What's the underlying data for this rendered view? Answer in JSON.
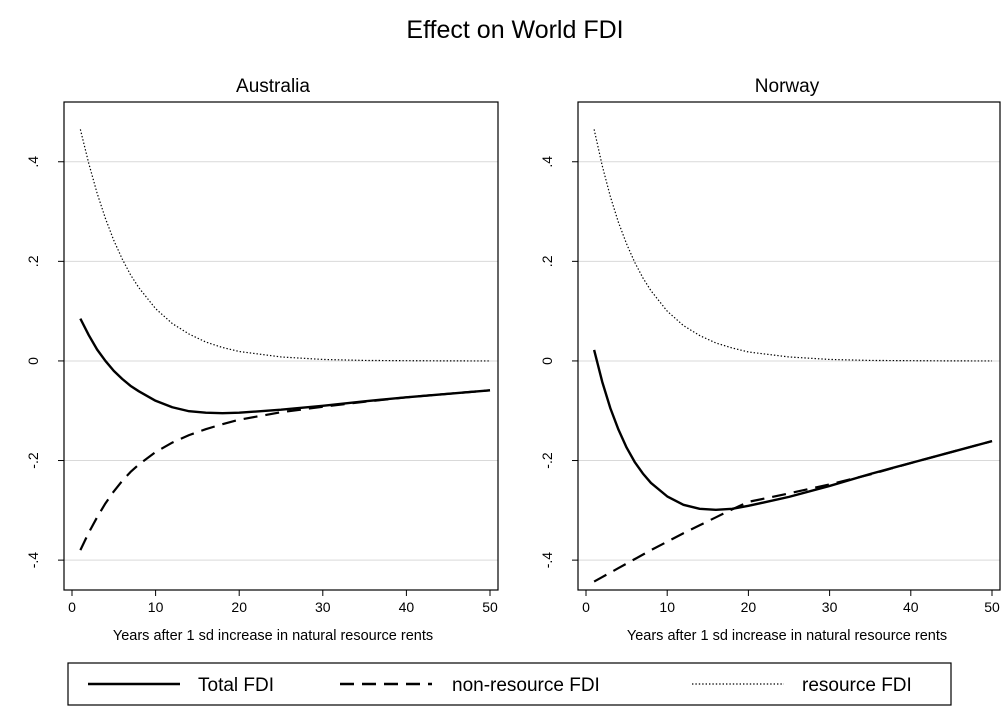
{
  "figure": {
    "title": "Effect on World FDI"
  },
  "legend": {
    "items": [
      {
        "label": "Total FDI",
        "style": "solid"
      },
      {
        "label": "non-resource FDI",
        "style": "dashed"
      },
      {
        "label": "resource FDI",
        "style": "dotted"
      }
    ]
  },
  "chart_data": [
    {
      "type": "line",
      "title": "Australia",
      "xlabel": "Years after 1 sd increase in natural resource rents",
      "ylabel": "",
      "xlim": [
        0,
        50
      ],
      "ylim": [
        -0.46,
        0.52
      ],
      "xticks": [
        0,
        10,
        20,
        30,
        40,
        50
      ],
      "yticks": [
        -0.4,
        -0.2,
        0,
        0.2,
        0.4
      ],
      "ytick_labels": [
        "-.4",
        "-.2",
        "0",
        ".2",
        ".4"
      ],
      "grid": "horizontal",
      "x": [
        1,
        2,
        3,
        4,
        5,
        6,
        7,
        8,
        10,
        12,
        14,
        16,
        18,
        20,
        25,
        30,
        35,
        40,
        45,
        50
      ],
      "series": [
        {
          "name": "Total FDI",
          "style": "solid",
          "values": [
            0.085,
            0.052,
            0.023,
            0.0,
            -0.02,
            -0.036,
            -0.05,
            -0.061,
            -0.08,
            -0.093,
            -0.101,
            -0.104,
            -0.105,
            -0.104,
            -0.098,
            -0.09,
            -0.081,
            -0.073,
            -0.066,
            -0.059
          ]
        },
        {
          "name": "non-resource FDI",
          "style": "dashed",
          "values": [
            -0.38,
            -0.345,
            -0.314,
            -0.286,
            -0.262,
            -0.241,
            -0.223,
            -0.208,
            -0.183,
            -0.164,
            -0.149,
            -0.137,
            -0.127,
            -0.118,
            -0.103,
            -0.092,
            -0.082,
            -0.073,
            -0.066,
            -0.059
          ]
        },
        {
          "name": "resource FDI",
          "style": "dotted",
          "values": [
            0.465,
            0.397,
            0.337,
            0.286,
            0.242,
            0.205,
            0.173,
            0.147,
            0.105,
            0.075,
            0.054,
            0.038,
            0.027,
            0.019,
            0.008,
            0.003,
            0.001,
            0.0005,
            0.0001,
            0.0
          ]
        }
      ]
    },
    {
      "type": "line",
      "title": "Norway",
      "xlabel": "Years after 1 sd increase in natural resource rents",
      "ylabel": "",
      "xlim": [
        0,
        50
      ],
      "ylim": [
        -0.46,
        0.52
      ],
      "xticks": [
        0,
        10,
        20,
        30,
        40,
        50
      ],
      "yticks": [
        -0.4,
        -0.2,
        0,
        0.2,
        0.4
      ],
      "ytick_labels": [
        "-.4",
        "-.2",
        "0",
        ".2",
        ".4"
      ],
      "grid": "horizontal",
      "x": [
        1,
        2,
        3,
        4,
        5,
        6,
        7,
        8,
        10,
        12,
        14,
        16,
        18,
        20,
        25,
        30,
        35,
        40,
        45,
        50
      ],
      "series": [
        {
          "name": "Total FDI",
          "style": "solid",
          "values": [
            0.022,
            -0.042,
            -0.095,
            -0.138,
            -0.174,
            -0.203,
            -0.226,
            -0.245,
            -0.272,
            -0.289,
            -0.297,
            -0.299,
            -0.297,
            -0.291,
            -0.273,
            -0.251,
            -0.227,
            -0.205,
            -0.183,
            -0.161
          ]
        },
        {
          "name": "non-resource FDI",
          "style": "dashed",
          "values": [
            -0.443,
            -0.434,
            -0.425,
            -0.416,
            -0.407,
            -0.398,
            -0.389,
            -0.38,
            -0.363,
            -0.346,
            -0.33,
            -0.314,
            -0.298,
            -0.283,
            -0.266,
            -0.248,
            -0.228,
            -0.205,
            -0.183,
            -0.161
          ]
        },
        {
          "name": "resource FDI",
          "style": "dotted",
          "values": [
            0.465,
            0.392,
            0.33,
            0.278,
            0.235,
            0.198,
            0.167,
            0.141,
            0.1,
            0.071,
            0.051,
            0.036,
            0.026,
            0.018,
            0.008,
            0.003,
            0.001,
            0.0005,
            0.0001,
            0.0
          ]
        }
      ]
    }
  ]
}
